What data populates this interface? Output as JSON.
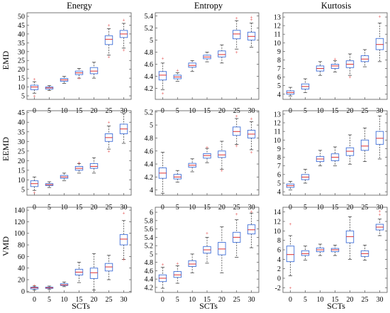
{
  "figure": {
    "columns": [
      "Energy",
      "Entropy",
      "Kurtosis"
    ],
    "rows": [
      "EMD",
      "EEMD",
      "VMD"
    ],
    "xlabel": "SCTs"
  },
  "colors": {
    "box": "#3f6fd8",
    "median": "#e03030",
    "whisker": "#444444",
    "outlier": "#e03030",
    "axes": "#555555"
  },
  "chart_data": [
    {
      "type": "box",
      "row": "EMD",
      "col": "Energy",
      "categories": [
        "0",
        "5",
        "10",
        "15",
        "20",
        "25",
        "30"
      ],
      "ylim": [
        3,
        52
      ],
      "yticks": [
        5,
        10,
        15,
        20,
        25,
        30,
        35,
        40,
        45,
        50
      ],
      "ytick_labels": [
        "5",
        "10",
        "15",
        "20",
        "25",
        "30",
        "35",
        "40",
        "45",
        "50"
      ],
      "series": [
        {
          "cat": "0",
          "min": 6.5,
          "q1": 8.5,
          "median": 10,
          "q3": 11,
          "max": 13,
          "outliers": [
            5,
            14.5
          ]
        },
        {
          "cat": "5",
          "min": 8,
          "q1": 8.8,
          "median": 9.5,
          "q3": 10,
          "max": 10.8,
          "outliers": []
        },
        {
          "cat": "10",
          "min": 12,
          "q1": 13.2,
          "median": 14,
          "q3": 14.8,
          "max": 16,
          "outliers": []
        },
        {
          "cat": "15",
          "min": 15,
          "q1": 17,
          "median": 18,
          "q3": 19,
          "max": 20.5,
          "outliers": [
            15
          ]
        },
        {
          "cat": "20",
          "min": 15,
          "q1": 17.5,
          "median": 19,
          "q3": 21,
          "max": 24,
          "outliers": []
        },
        {
          "cat": "25",
          "min": 28,
          "q1": 34,
          "median": 37,
          "q3": 39,
          "max": 43,
          "outliers": [
            45,
            27
          ]
        },
        {
          "cat": "30",
          "min": 32,
          "q1": 38,
          "median": 40,
          "q3": 42,
          "max": 46,
          "outliers": [
            48,
            31
          ]
        }
      ]
    },
    {
      "type": "box",
      "row": "EMD",
      "col": "Entropy",
      "categories": [
        "0",
        "5",
        "10",
        "15",
        "20",
        "25",
        "30"
      ],
      "ylim": [
        4.02,
        5.45
      ],
      "yticks": [
        4.2,
        4.4,
        4.6,
        4.8,
        5,
        5.2,
        5.4
      ],
      "ytick_labels": [
        "4.2",
        "4.4",
        "4.6",
        "4.8",
        "5",
        "5.2",
        "5.4"
      ],
      "series": [
        {
          "cat": "0",
          "min": 4.18,
          "q1": 4.34,
          "median": 4.42,
          "q3": 4.48,
          "max": 4.62,
          "outliers": [
            4.12,
            4.7
          ]
        },
        {
          "cat": "5",
          "min": 4.32,
          "q1": 4.36,
          "median": 4.39,
          "q3": 4.42,
          "max": 4.46,
          "outliers": [
            4.5
          ]
        },
        {
          "cat": "10",
          "min": 4.48,
          "q1": 4.55,
          "median": 4.58,
          "q3": 4.62,
          "max": 4.66,
          "outliers": []
        },
        {
          "cat": "15",
          "min": 4.64,
          "q1": 4.69,
          "median": 4.72,
          "q3": 4.75,
          "max": 4.8,
          "outliers": []
        },
        {
          "cat": "20",
          "min": 4.62,
          "q1": 4.72,
          "median": 4.76,
          "q3": 4.82,
          "max": 4.92,
          "outliers": []
        },
        {
          "cat": "25",
          "min": 4.85,
          "q1": 5.02,
          "median": 5.1,
          "q3": 5.16,
          "max": 5.32,
          "outliers": [
            4.8,
            5.36
          ]
        },
        {
          "cat": "30",
          "min": 4.88,
          "q1": 5.0,
          "median": 5.06,
          "q3": 5.13,
          "max": 5.28,
          "outliers": [
            5.34,
            5.38
          ]
        }
      ]
    },
    {
      "type": "box",
      "row": "EMD",
      "col": "Kurtosis",
      "categories": [
        "0",
        "5",
        "10",
        "15",
        "20",
        "25",
        "30"
      ],
      "ylim": [
        3.4,
        13.5
      ],
      "yticks": [
        4,
        5,
        6,
        7,
        8,
        9,
        10,
        11,
        12,
        13
      ],
      "ytick_labels": [
        "4",
        "5",
        "6",
        "7",
        "8",
        "9",
        "10",
        "11",
        "12",
        "13"
      ],
      "series": [
        {
          "cat": "0",
          "min": 3.8,
          "q1": 4.0,
          "median": 4.2,
          "q3": 4.4,
          "max": 4.8,
          "outliers": []
        },
        {
          "cat": "5",
          "min": 4.2,
          "q1": 4.6,
          "median": 4.9,
          "q3": 5.2,
          "max": 5.8,
          "outliers": []
        },
        {
          "cat": "10",
          "min": 6.2,
          "q1": 6.7,
          "median": 7.0,
          "q3": 7.3,
          "max": 7.8,
          "outliers": []
        },
        {
          "cat": "15",
          "min": 6.6,
          "q1": 7.0,
          "median": 7.3,
          "q3": 7.5,
          "max": 7.9,
          "outliers": [
            8.1
          ]
        },
        {
          "cat": "20",
          "min": 6.2,
          "q1": 7.1,
          "median": 7.5,
          "q3": 7.9,
          "max": 8.7,
          "outliers": [
            6.0
          ]
        },
        {
          "cat": "25",
          "min": 7.2,
          "q1": 7.8,
          "median": 8.1,
          "q3": 8.5,
          "max": 9.2,
          "outliers": []
        },
        {
          "cat": "30",
          "min": 7.8,
          "q1": 9.2,
          "median": 9.8,
          "q3": 10.5,
          "max": 12.3,
          "outliers": [
            13.1
          ]
        }
      ]
    },
    {
      "type": "box",
      "row": "EEMD",
      "col": "Energy",
      "categories": [
        "0",
        "5",
        "10",
        "15",
        "20",
        "25",
        "30"
      ],
      "ylim": [
        2,
        46
      ],
      "yticks": [
        5,
        10,
        15,
        20,
        25,
        30,
        35,
        40,
        45
      ],
      "ytick_labels": [
        "5",
        "10",
        "15",
        "20",
        "25",
        "30",
        "35",
        "40",
        "45"
      ],
      "series": [
        {
          "cat": "0",
          "min": 4.5,
          "q1": 6.5,
          "median": 8,
          "q3": 9.5,
          "max": 11.5,
          "outliers": [
            3.5
          ]
        },
        {
          "cat": "5",
          "min": 6.0,
          "q1": 7.0,
          "median": 7.5,
          "q3": 8.0,
          "max": 9.0,
          "outliers": []
        },
        {
          "cat": "10",
          "min": 9.5,
          "q1": 10.8,
          "median": 11.5,
          "q3": 12.3,
          "max": 13.5,
          "outliers": []
        },
        {
          "cat": "15",
          "min": 13.5,
          "q1": 15,
          "median": 16,
          "q3": 17,
          "max": 18.5,
          "outliers": [
            19
          ]
        },
        {
          "cat": "20",
          "min": 13.5,
          "q1": 16,
          "median": 17,
          "q3": 18.5,
          "max": 21.5,
          "outliers": []
        },
        {
          "cat": "25",
          "min": 26,
          "q1": 30,
          "median": 32,
          "q3": 34,
          "max": 38,
          "outliers": [
            40,
            25
          ]
        },
        {
          "cat": "30",
          "min": 29,
          "q1": 34,
          "median": 36.5,
          "q3": 39,
          "max": 44.5,
          "outliers": []
        }
      ]
    },
    {
      "type": "box",
      "row": "EEMD",
      "col": "Entropy",
      "categories": [
        "0",
        "5",
        "10",
        "15",
        "20",
        "25",
        "30"
      ],
      "ylim": [
        3.92,
        5.22
      ],
      "yticks": [
        4,
        4.2,
        4.4,
        4.6,
        4.8,
        5,
        5.2
      ],
      "ytick_labels": [
        "4",
        "4.2",
        "4.4",
        "4.6",
        "4.8",
        "5",
        "5.2"
      ],
      "series": [
        {
          "cat": "0",
          "min": 3.95,
          "q1": 4.18,
          "median": 4.26,
          "q3": 4.34,
          "max": 4.58,
          "outliers": []
        },
        {
          "cat": "5",
          "min": 4.12,
          "q1": 4.17,
          "median": 4.2,
          "q3": 4.24,
          "max": 4.3,
          "outliers": []
        },
        {
          "cat": "10",
          "min": 4.28,
          "q1": 4.35,
          "median": 4.38,
          "q3": 4.41,
          "max": 4.48,
          "outliers": []
        },
        {
          "cat": "15",
          "min": 4.42,
          "q1": 4.49,
          "median": 4.53,
          "q3": 4.56,
          "max": 4.64,
          "outliers": [
            4.66
          ]
        },
        {
          "cat": "20",
          "min": 4.32,
          "q1": 4.5,
          "median": 4.54,
          "q3": 4.6,
          "max": 4.75,
          "outliers": [
            4.3
          ]
        },
        {
          "cat": "25",
          "min": 4.7,
          "q1": 4.84,
          "median": 4.9,
          "q3": 4.97,
          "max": 5.1,
          "outliers": [
            4.68,
            5.14
          ]
        },
        {
          "cat": "30",
          "min": 4.62,
          "q1": 4.8,
          "median": 4.86,
          "q3": 4.92,
          "max": 5.05,
          "outliers": [
            4.58,
            5.1
          ]
        }
      ]
    },
    {
      "type": "box",
      "row": "EEMD",
      "col": "Kurtosis",
      "categories": [
        "0",
        "5",
        "10",
        "15",
        "20",
        "25",
        "30"
      ],
      "ylim": [
        3.6,
        13.4
      ],
      "yticks": [
        4,
        5,
        6,
        7,
        8,
        9,
        10,
        11,
        12,
        13
      ],
      "ytick_labels": [
        "4",
        "5",
        "6",
        "7",
        "8",
        "9",
        "10",
        "11",
        "12",
        "13"
      ],
      "series": [
        {
          "cat": "0",
          "min": 4.2,
          "q1": 4.5,
          "median": 4.7,
          "q3": 4.9,
          "max": 5.2,
          "outliers": []
        },
        {
          "cat": "5",
          "min": 5.0,
          "q1": 5.4,
          "median": 5.7,
          "q3": 6.0,
          "max": 6.6,
          "outliers": []
        },
        {
          "cat": "10",
          "min": 7.0,
          "q1": 7.5,
          "median": 7.8,
          "q3": 8.1,
          "max": 8.8,
          "outliers": []
        },
        {
          "cat": "15",
          "min": 7.0,
          "q1": 7.6,
          "median": 8.0,
          "q3": 8.4,
          "max": 9.2,
          "outliers": []
        },
        {
          "cat": "20",
          "min": 7.2,
          "q1": 8.2,
          "median": 8.7,
          "q3": 9.1,
          "max": 10.6,
          "outliers": []
        },
        {
          "cat": "25",
          "min": 7.5,
          "q1": 8.8,
          "median": 9.3,
          "q3": 10.0,
          "max": 11.4,
          "outliers": []
        },
        {
          "cat": "30",
          "min": 7.8,
          "q1": 9.5,
          "median": 10.2,
          "q3": 11.0,
          "max": 12.8,
          "outliers": []
        }
      ]
    },
    {
      "type": "box",
      "row": "VMD",
      "col": "Energy",
      "categories": [
        "0",
        "5",
        "10",
        "15",
        "20",
        "25",
        "30"
      ],
      "ylim": [
        -2,
        145
      ],
      "yticks": [
        0,
        20,
        40,
        60,
        80,
        100,
        120,
        140
      ],
      "ytick_labels": [
        "0",
        "20",
        "40",
        "60",
        "80",
        "100",
        "120",
        "140"
      ],
      "series": [
        {
          "cat": "0",
          "min": 2,
          "q1": 4,
          "median": 6,
          "q3": 7,
          "max": 9,
          "outliers": [
            10
          ]
        },
        {
          "cat": "5",
          "min": 3,
          "q1": 5,
          "median": 6,
          "q3": 7,
          "max": 9,
          "outliers": []
        },
        {
          "cat": "10",
          "min": 8,
          "q1": 10,
          "median": 11,
          "q3": 13,
          "max": 16,
          "outliers": []
        },
        {
          "cat": "15",
          "min": 15,
          "q1": 28,
          "median": 33,
          "q3": 38,
          "max": 50,
          "outliers": []
        },
        {
          "cat": "20",
          "min": 2,
          "q1": 22,
          "median": 32,
          "q3": 40,
          "max": 65,
          "outliers": []
        },
        {
          "cat": "25",
          "min": 20,
          "q1": 35,
          "median": 42,
          "q3": 48,
          "max": 62,
          "outliers": []
        },
        {
          "cat": "30",
          "min": 55,
          "q1": 80,
          "median": 90,
          "q3": 98,
          "max": 122,
          "outliers": [
            135,
            55
          ]
        }
      ]
    },
    {
      "type": "box",
      "row": "VMD",
      "col": "Entropy",
      "categories": [
        "0",
        "5",
        "10",
        "15",
        "20",
        "25",
        "30"
      ],
      "ylim": [
        4.08,
        6.12
      ],
      "yticks": [
        4.2,
        4.4,
        4.6,
        4.8,
        5,
        5.2,
        5.4,
        5.6,
        5.8,
        6
      ],
      "ytick_labels": [
        "4.2",
        "4.4",
        "4.6",
        "4.8",
        "5",
        "5.2",
        "5.4",
        "5.6",
        "5.8",
        "6"
      ],
      "series": [
        {
          "cat": "0",
          "min": 4.18,
          "q1": 4.34,
          "median": 4.42,
          "q3": 4.5,
          "max": 4.68,
          "outliers": [
            4.75
          ]
        },
        {
          "cat": "5",
          "min": 4.3,
          "q1": 4.44,
          "median": 4.5,
          "q3": 4.58,
          "max": 4.72,
          "outliers": [
            4.78
          ]
        },
        {
          "cat": "10",
          "min": 4.55,
          "q1": 4.7,
          "median": 4.76,
          "q3": 4.84,
          "max": 5.0,
          "outliers": []
        },
        {
          "cat": "15",
          "min": 4.78,
          "q1": 5.02,
          "median": 5.1,
          "q3": 5.18,
          "max": 5.4,
          "outliers": [
            5.5
          ]
        },
        {
          "cat": "20",
          "min": 4.55,
          "q1": 4.98,
          "median": 5.12,
          "q3": 5.28,
          "max": 5.65,
          "outliers": []
        },
        {
          "cat": "25",
          "min": 4.92,
          "q1": 5.28,
          "median": 5.4,
          "q3": 5.52,
          "max": 5.82,
          "outliers": [
            5.96
          ]
        },
        {
          "cat": "30",
          "min": 5.15,
          "q1": 5.48,
          "median": 5.58,
          "q3": 5.7,
          "max": 5.98,
          "outliers": [
            6.02
          ]
        }
      ]
    },
    {
      "type": "box",
      "row": "VMD",
      "col": "Kurtosis",
      "categories": [
        "0",
        "5",
        "10",
        "15",
        "20",
        "25",
        "30"
      ],
      "ylim": [
        -3,
        15
      ],
      "yticks": [
        -2,
        0,
        2,
        4,
        6,
        8,
        10,
        12,
        14
      ],
      "ytick_labels": [
        "-2",
        "0",
        "2",
        "4",
        "6",
        "8",
        "10",
        "12",
        "14"
      ],
      "series": [
        {
          "cat": "0",
          "min": 0.5,
          "q1": 3.5,
          "median": 5.0,
          "q3": 6.8,
          "max": 9.0,
          "outliers": [
            11.5,
            -2.0
          ]
        },
        {
          "cat": "5",
          "min": 3.8,
          "q1": 4.8,
          "median": 5.2,
          "q3": 5.8,
          "max": 6.8,
          "outliers": []
        },
        {
          "cat": "10",
          "min": 4.8,
          "q1": 5.6,
          "median": 6.0,
          "q3": 6.4,
          "max": 7.2,
          "outliers": []
        },
        {
          "cat": "15",
          "min": 4.8,
          "q1": 5.6,
          "median": 6.0,
          "q3": 6.3,
          "max": 7.0,
          "outliers": []
        },
        {
          "cat": "20",
          "min": 4.0,
          "q1": 7.5,
          "median": 8.8,
          "q3": 10.0,
          "max": 13.0,
          "outliers": []
        },
        {
          "cat": "25",
          "min": 3.8,
          "q1": 4.6,
          "median": 5.2,
          "q3": 5.8,
          "max": 7.0,
          "outliers": []
        },
        {
          "cat": "30",
          "min": 9.0,
          "q1": 10.2,
          "median": 10.8,
          "q3": 11.4,
          "max": 12.5,
          "outliers": [
            13.5,
            14.2
          ]
        }
      ]
    }
  ]
}
